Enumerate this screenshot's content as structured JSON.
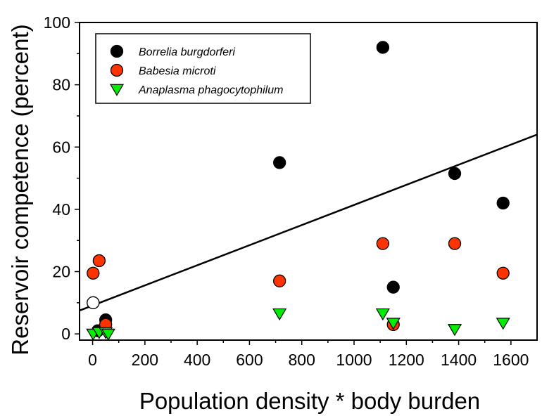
{
  "chart_data": {
    "type": "scatter",
    "title": "",
    "xlabel": "Population density * body burden",
    "ylabel": "Reservoir competence (percent)",
    "xlim": [
      -50,
      1700
    ],
    "ylim": [
      -2,
      100
    ],
    "xticks": [
      0,
      200,
      400,
      600,
      800,
      1000,
      1200,
      1400,
      1600
    ],
    "yticks": [
      0,
      20,
      40,
      60,
      80,
      100
    ],
    "xtick_labels": [
      "0",
      "200",
      "400",
      "600",
      "800",
      "1000",
      "1200",
      "1400",
      "1600"
    ],
    "ytick_labels": [
      "0",
      "20",
      "40",
      "60",
      "80",
      "100"
    ],
    "legend_position": "top-left",
    "series": [
      {
        "name": "Borrelia burgdorferi",
        "marker": "circle",
        "color": "#000000",
        "points": [
          [
            2,
            10
          ],
          [
            20,
            1
          ],
          [
            50,
            4.5
          ],
          [
            715,
            55
          ],
          [
            1110,
            92
          ],
          [
            1150,
            15
          ],
          [
            1385,
            51.5
          ],
          [
            1570,
            42
          ]
        ]
      },
      {
        "name": "Babesia microti",
        "marker": "circle",
        "color": "#ff3300",
        "points": [
          [
            2,
            19.5
          ],
          [
            25,
            23.5
          ],
          [
            50,
            3
          ],
          [
            715,
            17
          ],
          [
            1110,
            29
          ],
          [
            1150,
            3
          ],
          [
            1385,
            29
          ],
          [
            1570,
            19.5
          ]
        ]
      },
      {
        "name": "Anaplasma phagocytophilum",
        "marker": "triangle-down",
        "color": "#00ee00",
        "points": [
          [
            2,
            0
          ],
          [
            25,
            0.5
          ],
          [
            50,
            0.5
          ],
          [
            60,
            0
          ],
          [
            715,
            6.5
          ],
          [
            1110,
            6.5
          ],
          [
            1150,
            3.5
          ],
          [
            1385,
            1.5
          ],
          [
            1570,
            3.5
          ]
        ]
      }
    ],
    "open_points": [
      [
        2,
        10
      ]
    ],
    "trend_line": {
      "x": [
        -50,
        1700
      ],
      "y": [
        7.5,
        64
      ]
    }
  }
}
